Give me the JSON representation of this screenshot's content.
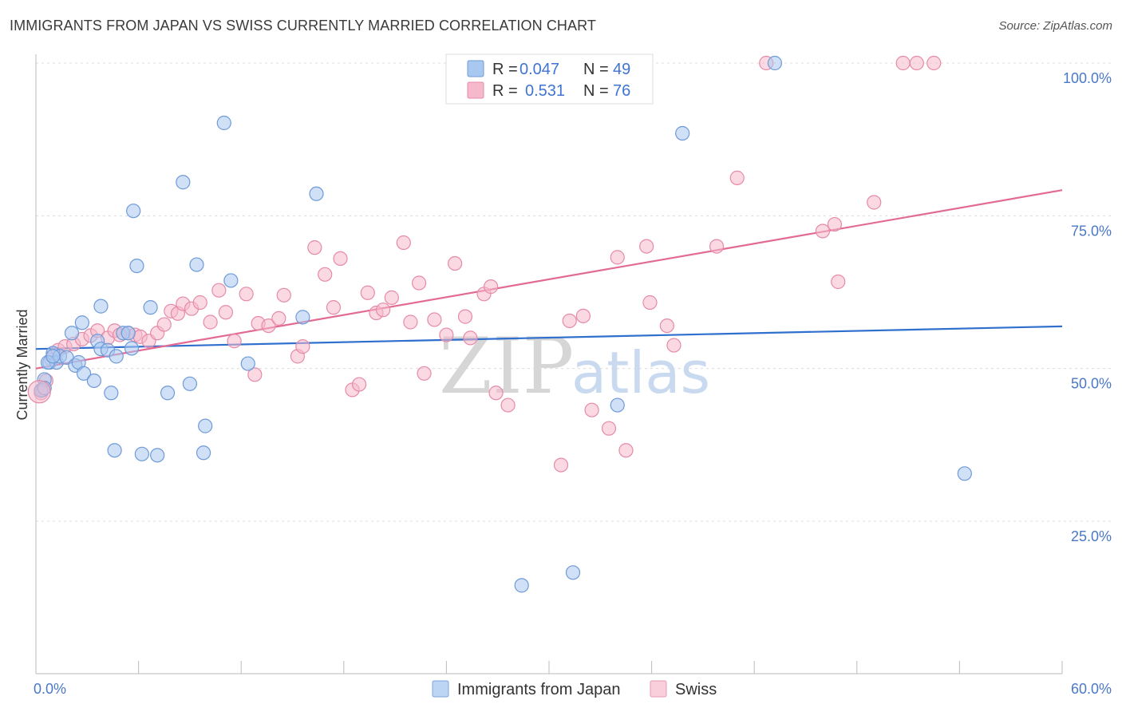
{
  "title": "IMMIGRANTS FROM JAPAN VS SWISS CURRENTLY MARRIED CORRELATION CHART",
  "source": "Source: ZipAtlas.com",
  "watermark": {
    "left": "ZIP",
    "right": "atlas"
  },
  "legend": {
    "rows": [
      {
        "r_label": "R =",
        "r_value": "0.047",
        "n_label": "N =",
        "n_value": "49",
        "color": "#a9c8f0",
        "stroke": "#6e9ad8"
      },
      {
        "r_label": "R =",
        "r_value": "0.531",
        "n_label": "N =",
        "n_value": "76",
        "color": "#f6b9cc",
        "stroke": "#e68aa8"
      }
    ]
  },
  "bottom_legend": [
    {
      "label": "Immigrants from Japan",
      "color": "#bcd5f5",
      "stroke": "#7ea3dc"
    },
    {
      "label": "Swiss",
      "color": "#f9cfdc",
      "stroke": "#e898b2"
    }
  ],
  "chart_data": {
    "type": "scatter",
    "title": "IMMIGRANTS FROM JAPAN VS SWISS CURRENTLY MARRIED CORRELATION CHART",
    "xlabel": "",
    "ylabel": "Currently Married",
    "xlim": [
      0,
      60
    ],
    "ylim": [
      0,
      104
    ],
    "x_tick_labels": [
      "0.0%",
      "60.0%"
    ],
    "y_ticks": [
      25,
      50,
      75,
      100
    ],
    "y_tick_labels": [
      "25.0%",
      "50.0%",
      "75.0%",
      "100.0%"
    ],
    "series": [
      {
        "name": "Immigrants from Japan",
        "color": "#a9c8f0",
        "stroke": "#6e9ad8",
        "line_color": "#2f6fce",
        "trend": {
          "x": [
            0,
            60
          ],
          "y": [
            53.2,
            56.9
          ]
        },
        "points": [
          [
            0.4,
            46.5
          ],
          [
            0.5,
            48.2
          ],
          [
            0.8,
            51.0
          ],
          [
            1.0,
            52.5
          ],
          [
            1.2,
            51.0
          ],
          [
            1.4,
            52.0
          ],
          [
            1.8,
            51.8
          ],
          [
            2.1,
            55.8
          ],
          [
            2.3,
            50.5
          ],
          [
            2.5,
            51.0
          ],
          [
            2.7,
            57.5
          ],
          [
            2.8,
            49.2
          ],
          [
            3.4,
            48.0
          ],
          [
            3.6,
            54.5
          ],
          [
            3.8,
            60.2
          ],
          [
            3.8,
            53.2
          ],
          [
            4.2,
            53.0
          ],
          [
            4.4,
            46.0
          ],
          [
            4.6,
            36.6
          ],
          [
            4.7,
            52.0
          ],
          [
            5.1,
            55.8
          ],
          [
            5.4,
            55.8
          ],
          [
            5.6,
            53.3
          ],
          [
            5.7,
            75.8
          ],
          [
            5.9,
            66.8
          ],
          [
            6.2,
            36.0
          ],
          [
            6.7,
            60.0
          ],
          [
            7.1,
            35.8
          ],
          [
            7.7,
            46.0
          ],
          [
            8.6,
            80.5
          ],
          [
            9.0,
            47.5
          ],
          [
            9.4,
            67.0
          ],
          [
            9.8,
            36.2
          ],
          [
            9.9,
            40.6
          ],
          [
            11.0,
            90.2
          ],
          [
            11.4,
            64.4
          ],
          [
            12.4,
            50.8
          ],
          [
            15.6,
            58.4
          ],
          [
            16.4,
            78.6
          ],
          [
            28.4,
            14.5
          ],
          [
            31.4,
            16.6
          ],
          [
            34.0,
            44.0
          ],
          [
            37.8,
            88.5
          ],
          [
            43.2,
            100.0
          ],
          [
            54.3,
            32.8
          ],
          [
            0.3,
            46.4
          ],
          [
            0.5,
            46.8
          ],
          [
            0.7,
            51.0
          ],
          [
            1.0,
            52.0
          ]
        ]
      },
      {
        "name": "Swiss",
        "color": "#f6b9cc",
        "stroke": "#e68aa8",
        "line_color": "#e26a93",
        "trend": {
          "x": [
            0,
            60
          ],
          "y": [
            50.0,
            79.2
          ]
        },
        "points": [
          [
            0.3,
            46.0
          ],
          [
            0.6,
            48.0
          ],
          [
            0.9,
            51.5
          ],
          [
            1.3,
            53.0
          ],
          [
            1.7,
            53.6
          ],
          [
            2.2,
            54.0
          ],
          [
            2.7,
            54.8
          ],
          [
            3.2,
            55.4
          ],
          [
            3.6,
            56.2
          ],
          [
            4.2,
            55.0
          ],
          [
            4.6,
            56.2
          ],
          [
            4.9,
            55.5
          ],
          [
            5.4,
            55.8
          ],
          [
            5.8,
            55.5
          ],
          [
            6.1,
            55.2
          ],
          [
            6.6,
            54.5
          ],
          [
            7.1,
            55.8
          ],
          [
            7.5,
            57.2
          ],
          [
            7.9,
            59.4
          ],
          [
            8.3,
            59.0
          ],
          [
            8.6,
            60.6
          ],
          [
            9.1,
            59.8
          ],
          [
            9.6,
            60.8
          ],
          [
            10.2,
            57.6
          ],
          [
            10.7,
            62.8
          ],
          [
            11.1,
            59.2
          ],
          [
            11.6,
            54.5
          ],
          [
            12.3,
            62.2
          ],
          [
            12.8,
            49.0
          ],
          [
            13.0,
            57.4
          ],
          [
            13.6,
            57.0
          ],
          [
            14.2,
            58.2
          ],
          [
            14.5,
            62.0
          ],
          [
            15.3,
            52.0
          ],
          [
            15.6,
            53.6
          ],
          [
            16.3,
            69.8
          ],
          [
            16.9,
            65.4
          ],
          [
            17.4,
            60.0
          ],
          [
            17.8,
            68.0
          ],
          [
            18.5,
            46.5
          ],
          [
            18.9,
            47.4
          ],
          [
            19.4,
            62.4
          ],
          [
            19.9,
            59.1
          ],
          [
            20.3,
            59.6
          ],
          [
            20.8,
            61.6
          ],
          [
            21.5,
            70.6
          ],
          [
            21.9,
            57.6
          ],
          [
            22.4,
            64.0
          ],
          [
            22.7,
            49.2
          ],
          [
            23.3,
            58.0
          ],
          [
            24.0,
            55.5
          ],
          [
            24.5,
            67.2
          ],
          [
            25.1,
            58.5
          ],
          [
            25.4,
            55.0
          ],
          [
            26.2,
            62.2
          ],
          [
            26.6,
            63.4
          ],
          [
            26.9,
            46.0
          ],
          [
            27.6,
            44.0
          ],
          [
            30.7,
            34.2
          ],
          [
            31.2,
            57.8
          ],
          [
            32.0,
            58.6
          ],
          [
            32.5,
            43.2
          ],
          [
            33.5,
            40.2
          ],
          [
            34.0,
            68.2
          ],
          [
            34.5,
            36.6
          ],
          [
            35.7,
            70.0
          ],
          [
            35.9,
            60.8
          ],
          [
            36.9,
            57.0
          ],
          [
            37.3,
            53.8
          ],
          [
            39.8,
            70.0
          ],
          [
            41.0,
            81.2
          ],
          [
            46.0,
            72.5
          ],
          [
            46.7,
            73.6
          ],
          [
            46.9,
            64.2
          ],
          [
            49.0,
            77.2
          ],
          [
            50.7,
            100.0
          ]
        ]
      }
    ],
    "extra_swiss_points": [
      [
        42.7,
        100.0
      ],
      [
        51.5,
        100.0
      ],
      [
        52.5,
        100.0
      ]
    ]
  }
}
